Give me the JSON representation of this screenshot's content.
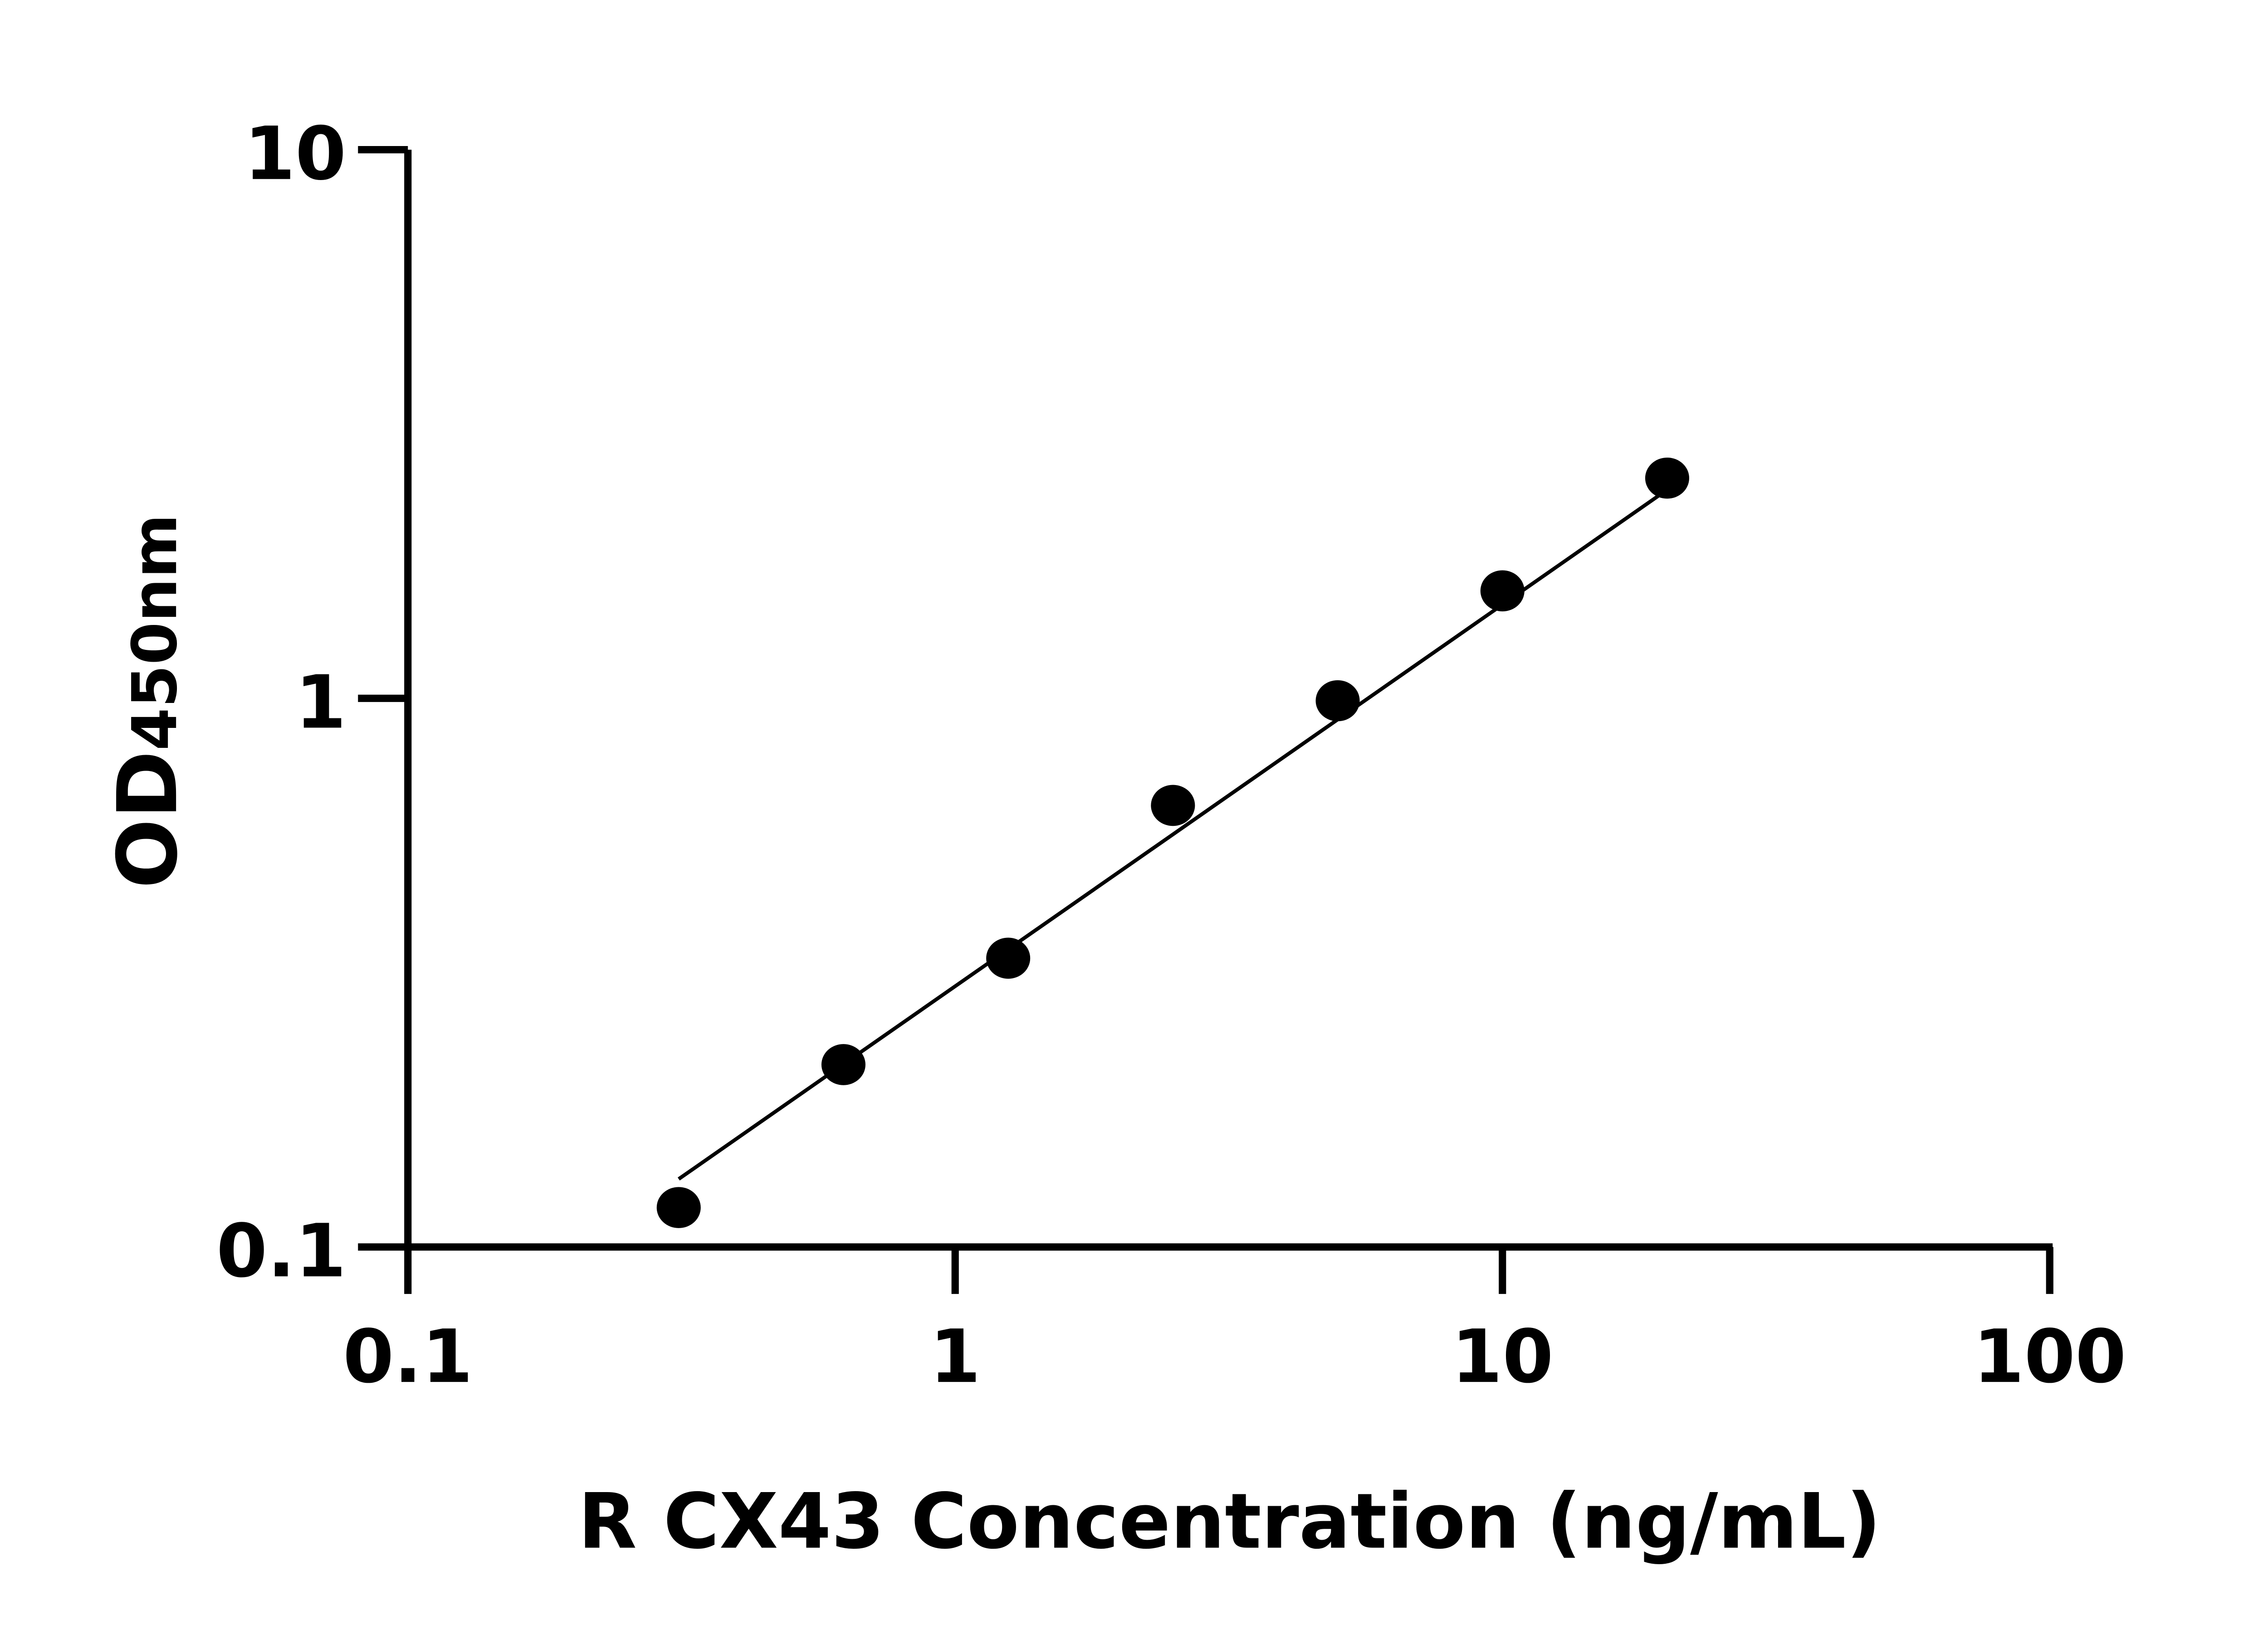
{
  "chart_data": {
    "type": "scatter",
    "title": "",
    "xlabel": "R CX43 Concentration (ng/mL)",
    "ylabel_main": "OD",
    "ylabel_sub": "450nm",
    "xscale": "log",
    "yscale": "log",
    "xlim": [
      0.1,
      100
    ],
    "ylim": [
      0.1,
      10
    ],
    "xticks": [
      "0.1",
      "1",
      "10",
      "100"
    ],
    "yticks": [
      "0.1",
      "1",
      "10"
    ],
    "grid": false,
    "points": [
      {
        "x": 0.3125,
        "y": 0.118
      },
      {
        "x": 0.625,
        "y": 0.215
      },
      {
        "x": 1.25,
        "y": 0.336
      },
      {
        "x": 2.5,
        "y": 0.638
      },
      {
        "x": 5,
        "y": 0.99
      },
      {
        "x": 10,
        "y": 1.57
      },
      {
        "x": 20,
        "y": 2.52
      }
    ],
    "fit_line": {
      "x": [
        0.3125,
        20
      ],
      "y": [
        0.133,
        2.4
      ]
    },
    "colors": {
      "marker": "#000000",
      "line": "#000000",
      "axes": "#000000"
    }
  }
}
